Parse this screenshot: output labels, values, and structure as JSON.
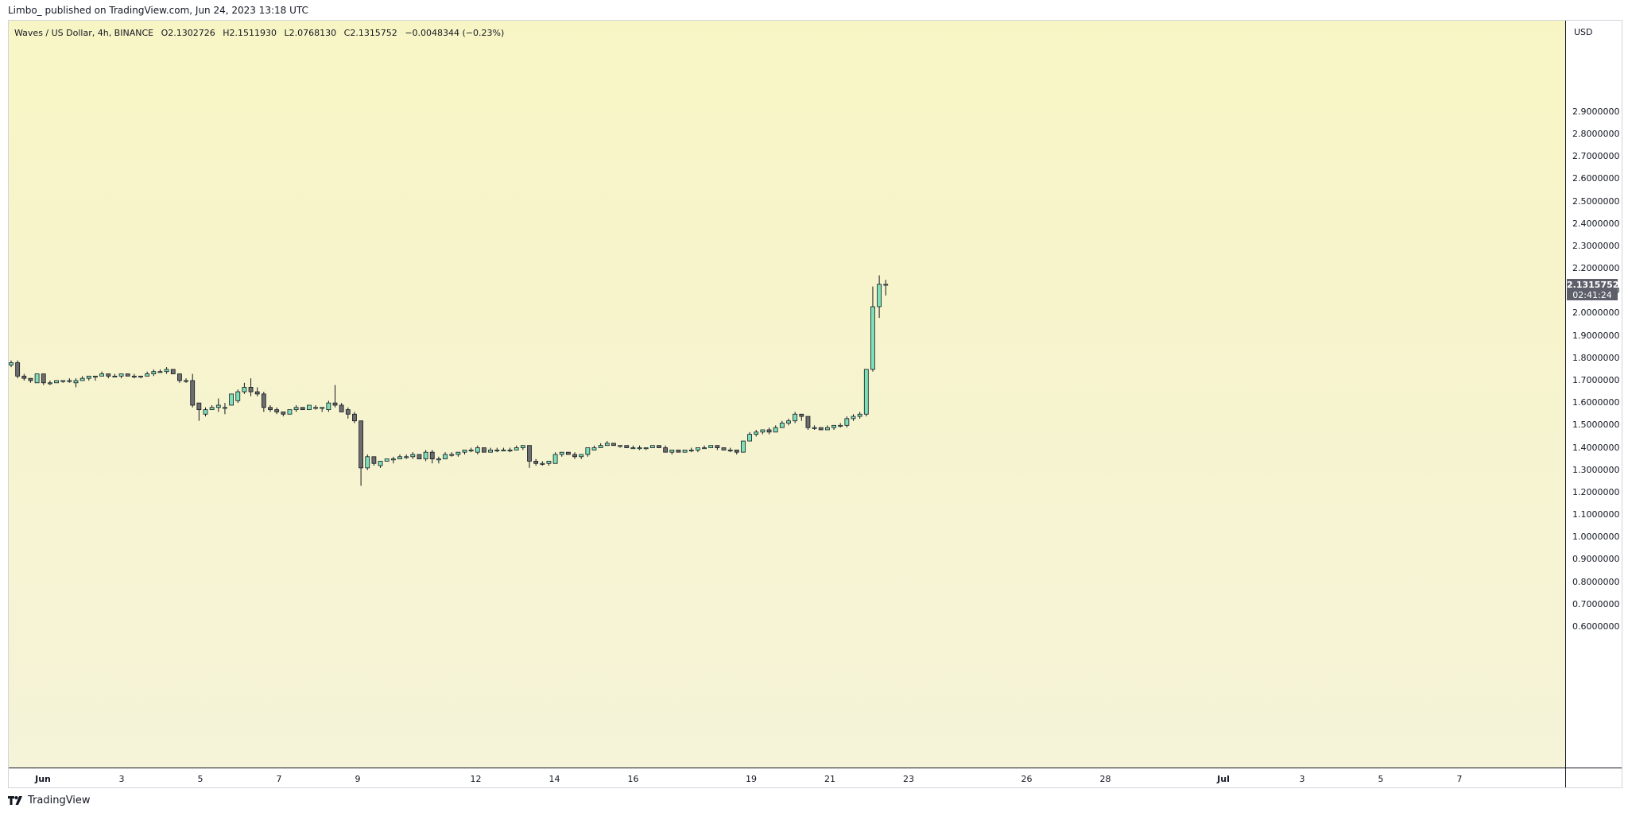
{
  "header": {
    "attribution": "Limbo_ published on TradingView.com, Jun 24, 2023 13:18 UTC"
  },
  "legend": {
    "symbol": "Waves / US Dollar, 4h, BINANCE",
    "open": "O2.1302726",
    "high": "H2.1511930",
    "low": "L2.0768130",
    "close": "C2.1315752",
    "change": "−0.0048344 (−0.23%)"
  },
  "price_axis": {
    "currency": "USD",
    "last_price": "2.1315752",
    "countdown": "02:41:24"
  },
  "footer": {
    "brand": "TradingView"
  },
  "colors": {
    "up": "#7ee0b8",
    "down": "#6d6d6d",
    "wick": "#131722",
    "price_tag": "#5d606b"
  },
  "chart_data": {
    "type": "candlestick",
    "symbol": "Waves / US Dollar",
    "interval": "4h",
    "exchange": "BINANCE",
    "ylim": [
      0.55,
      3.0
    ],
    "y_ticks": [
      "2.9000000",
      "2.8000000",
      "2.7000000",
      "2.6000000",
      "2.5000000",
      "2.4000000",
      "2.3000000",
      "2.2000000",
      "2.1000000",
      "2.0000000",
      "1.9000000",
      "1.8000000",
      "1.7000000",
      "1.6000000",
      "1.5000000",
      "1.4000000",
      "1.3000000",
      "1.2000000",
      "1.1000000",
      "1.0000000",
      "0.9000000",
      "0.8000000",
      "0.7000000",
      "0.6000000"
    ],
    "x_ticks": [
      {
        "label": "Jun",
        "day": 1,
        "bold": true
      },
      {
        "label": "3",
        "day": 3
      },
      {
        "label": "5",
        "day": 5
      },
      {
        "label": "7",
        "day": 7
      },
      {
        "label": "9",
        "day": 9
      },
      {
        "label": "12",
        "day": 12
      },
      {
        "label": "14",
        "day": 14
      },
      {
        "label": "16",
        "day": 16
      },
      {
        "label": "19",
        "day": 19
      },
      {
        "label": "21",
        "day": 21
      },
      {
        "label": "23",
        "day": 23
      },
      {
        "label": "26",
        "day": 26
      },
      {
        "label": "28",
        "day": 28
      },
      {
        "label": "Jul",
        "day": 31,
        "bold": true
      },
      {
        "label": "3",
        "day": 33
      },
      {
        "label": "5",
        "day": 35
      },
      {
        "label": "7",
        "day": 37
      }
    ],
    "candles": [
      [
        1.77,
        1.79,
        1.76,
        1.78
      ],
      [
        1.78,
        1.79,
        1.71,
        1.72
      ],
      [
        1.72,
        1.73,
        1.7,
        1.71
      ],
      [
        1.71,
        1.71,
        1.69,
        1.7
      ],
      [
        1.69,
        1.73,
        1.69,
        1.73
      ],
      [
        1.73,
        1.73,
        1.68,
        1.69
      ],
      [
        1.69,
        1.7,
        1.68,
        1.69
      ],
      [
        1.69,
        1.7,
        1.69,
        1.7
      ],
      [
        1.7,
        1.7,
        1.69,
        1.7
      ],
      [
        1.7,
        1.71,
        1.69,
        1.7
      ],
      [
        1.69,
        1.71,
        1.67,
        1.7
      ],
      [
        1.7,
        1.72,
        1.7,
        1.71
      ],
      [
        1.71,
        1.72,
        1.7,
        1.72
      ],
      [
        1.72,
        1.72,
        1.7,
        1.72
      ],
      [
        1.72,
        1.74,
        1.72,
        1.73
      ],
      [
        1.73,
        1.73,
        1.71,
        1.72
      ],
      [
        1.72,
        1.73,
        1.72,
        1.72
      ],
      [
        1.72,
        1.73,
        1.71,
        1.73
      ],
      [
        1.73,
        1.73,
        1.72,
        1.72
      ],
      [
        1.72,
        1.73,
        1.71,
        1.72
      ],
      [
        1.72,
        1.72,
        1.71,
        1.72
      ],
      [
        1.72,
        1.74,
        1.72,
        1.73
      ],
      [
        1.73,
        1.75,
        1.72,
        1.74
      ],
      [
        1.74,
        1.75,
        1.74,
        1.74
      ],
      [
        1.74,
        1.76,
        1.73,
        1.75
      ],
      [
        1.75,
        1.75,
        1.73,
        1.73
      ],
      [
        1.73,
        1.73,
        1.69,
        1.7
      ],
      [
        1.7,
        1.71,
        1.69,
        1.7
      ],
      [
        1.7,
        1.73,
        1.58,
        1.59
      ],
      [
        1.6,
        1.6,
        1.52,
        1.57
      ],
      [
        1.55,
        1.58,
        1.54,
        1.57
      ],
      [
        1.57,
        1.59,
        1.57,
        1.58
      ],
      [
        1.58,
        1.62,
        1.56,
        1.59
      ],
      [
        1.58,
        1.6,
        1.55,
        1.58
      ],
      [
        1.59,
        1.64,
        1.59,
        1.64
      ],
      [
        1.61,
        1.66,
        1.6,
        1.65
      ],
      [
        1.65,
        1.69,
        1.64,
        1.67
      ],
      [
        1.67,
        1.71,
        1.63,
        1.65
      ],
      [
        1.65,
        1.67,
        1.63,
        1.64
      ],
      [
        1.64,
        1.65,
        1.56,
        1.58
      ],
      [
        1.58,
        1.59,
        1.56,
        1.57
      ],
      [
        1.57,
        1.58,
        1.55,
        1.56
      ],
      [
        1.56,
        1.56,
        1.54,
        1.55
      ],
      [
        1.55,
        1.57,
        1.55,
        1.57
      ],
      [
        1.57,
        1.59,
        1.56,
        1.58
      ],
      [
        1.58,
        1.58,
        1.57,
        1.57
      ],
      [
        1.57,
        1.59,
        1.57,
        1.59
      ],
      [
        1.58,
        1.59,
        1.57,
        1.58
      ],
      [
        1.58,
        1.58,
        1.56,
        1.58
      ],
      [
        1.57,
        1.61,
        1.56,
        1.6
      ],
      [
        1.6,
        1.68,
        1.58,
        1.59
      ],
      [
        1.59,
        1.6,
        1.57,
        1.56
      ],
      [
        1.57,
        1.58,
        1.53,
        1.55
      ],
      [
        1.55,
        1.56,
        1.51,
        1.52
      ],
      [
        1.52,
        1.52,
        1.23,
        1.31
      ],
      [
        1.31,
        1.37,
        1.3,
        1.36
      ],
      [
        1.36,
        1.36,
        1.32,
        1.33
      ],
      [
        1.32,
        1.34,
        1.31,
        1.34
      ],
      [
        1.34,
        1.35,
        1.34,
        1.35
      ],
      [
        1.35,
        1.36,
        1.33,
        1.35
      ],
      [
        1.35,
        1.37,
        1.35,
        1.36
      ],
      [
        1.36,
        1.37,
        1.35,
        1.36
      ],
      [
        1.36,
        1.38,
        1.35,
        1.37
      ],
      [
        1.37,
        1.37,
        1.35,
        1.35
      ],
      [
        1.35,
        1.39,
        1.34,
        1.38
      ],
      [
        1.38,
        1.39,
        1.33,
        1.35
      ],
      [
        1.35,
        1.36,
        1.33,
        1.35
      ],
      [
        1.35,
        1.38,
        1.35,
        1.37
      ],
      [
        1.37,
        1.38,
        1.36,
        1.37
      ],
      [
        1.37,
        1.38,
        1.36,
        1.38
      ],
      [
        1.38,
        1.39,
        1.37,
        1.39
      ],
      [
        1.39,
        1.4,
        1.38,
        1.39
      ],
      [
        1.38,
        1.41,
        1.37,
        1.4
      ],
      [
        1.4,
        1.4,
        1.38,
        1.38
      ],
      [
        1.38,
        1.4,
        1.38,
        1.39
      ],
      [
        1.39,
        1.4,
        1.38,
        1.39
      ],
      [
        1.39,
        1.4,
        1.39,
        1.39
      ],
      [
        1.39,
        1.4,
        1.38,
        1.39
      ],
      [
        1.39,
        1.41,
        1.39,
        1.4
      ],
      [
        1.4,
        1.41,
        1.39,
        1.41
      ],
      [
        1.41,
        1.41,
        1.31,
        1.34
      ],
      [
        1.34,
        1.35,
        1.32,
        1.33
      ],
      [
        1.33,
        1.34,
        1.32,
        1.33
      ],
      [
        1.33,
        1.34,
        1.32,
        1.34
      ],
      [
        1.33,
        1.38,
        1.33,
        1.37
      ],
      [
        1.37,
        1.38,
        1.36,
        1.38
      ],
      [
        1.38,
        1.38,
        1.37,
        1.37
      ],
      [
        1.37,
        1.38,
        1.35,
        1.36
      ],
      [
        1.36,
        1.37,
        1.35,
        1.37
      ],
      [
        1.37,
        1.4,
        1.36,
        1.4
      ],
      [
        1.39,
        1.41,
        1.39,
        1.4
      ],
      [
        1.4,
        1.42,
        1.4,
        1.41
      ],
      [
        1.41,
        1.43,
        1.41,
        1.42
      ],
      [
        1.42,
        1.42,
        1.41,
        1.41
      ],
      [
        1.41,
        1.41,
        1.4,
        1.41
      ],
      [
        1.41,
        1.41,
        1.4,
        1.4
      ],
      [
        1.4,
        1.41,
        1.4,
        1.4
      ],
      [
        1.4,
        1.41,
        1.39,
        1.4
      ],
      [
        1.4,
        1.4,
        1.39,
        1.4
      ],
      [
        1.4,
        1.41,
        1.4,
        1.41
      ],
      [
        1.41,
        1.41,
        1.4,
        1.4
      ],
      [
        1.4,
        1.41,
        1.39,
        1.38
      ],
      [
        1.38,
        1.39,
        1.37,
        1.39
      ],
      [
        1.39,
        1.39,
        1.38,
        1.38
      ],
      [
        1.38,
        1.39,
        1.38,
        1.39
      ],
      [
        1.39,
        1.4,
        1.38,
        1.39
      ],
      [
        1.39,
        1.4,
        1.38,
        1.4
      ],
      [
        1.4,
        1.41,
        1.4,
        1.4
      ],
      [
        1.4,
        1.41,
        1.4,
        1.41
      ],
      [
        1.41,
        1.41,
        1.39,
        1.4
      ],
      [
        1.4,
        1.4,
        1.39,
        1.39
      ],
      [
        1.39,
        1.4,
        1.38,
        1.39
      ],
      [
        1.39,
        1.39,
        1.37,
        1.38
      ],
      [
        1.38,
        1.43,
        1.38,
        1.43
      ],
      [
        1.43,
        1.47,
        1.43,
        1.46
      ],
      [
        1.46,
        1.48,
        1.45,
        1.47
      ],
      [
        1.47,
        1.48,
        1.46,
        1.48
      ],
      [
        1.48,
        1.49,
        1.46,
        1.47
      ],
      [
        1.47,
        1.5,
        1.47,
        1.49
      ],
      [
        1.49,
        1.52,
        1.49,
        1.51
      ],
      [
        1.51,
        1.53,
        1.5,
        1.52
      ],
      [
        1.52,
        1.56,
        1.51,
        1.55
      ],
      [
        1.55,
        1.55,
        1.52,
        1.54
      ],
      [
        1.54,
        1.54,
        1.48,
        1.49
      ],
      [
        1.49,
        1.5,
        1.48,
        1.49
      ],
      [
        1.49,
        1.49,
        1.48,
        1.48
      ],
      [
        1.48,
        1.5,
        1.48,
        1.49
      ],
      [
        1.49,
        1.5,
        1.48,
        1.5
      ],
      [
        1.5,
        1.51,
        1.49,
        1.5
      ],
      [
        1.5,
        1.54,
        1.49,
        1.53
      ],
      [
        1.53,
        1.55,
        1.52,
        1.54
      ],
      [
        1.54,
        1.56,
        1.53,
        1.55
      ],
      [
        1.55,
        1.75,
        1.54,
        1.75
      ],
      [
        1.75,
        2.12,
        1.74,
        2.03
      ],
      [
        2.03,
        2.17,
        1.98,
        2.13
      ],
      [
        2.13,
        2.15,
        2.08,
        2.13
      ]
    ]
  }
}
